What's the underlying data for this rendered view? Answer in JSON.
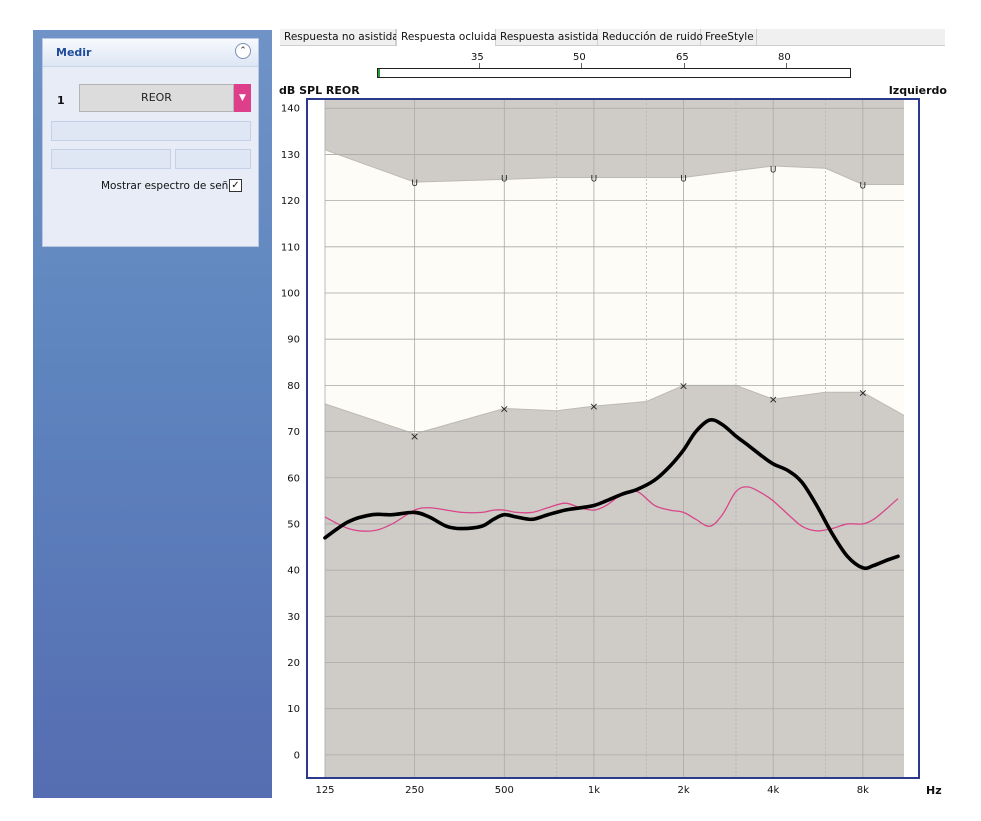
{
  "sidebar": {
    "panel_title": "Medir",
    "slot_number": "1",
    "measurement_button": "REOR",
    "show_spectrum_label": "Mostrar espectro de señal",
    "show_spectrum_checked": true
  },
  "tabs": [
    {
      "label": "Respuesta no asistida",
      "active": false
    },
    {
      "label": "Respuesta ocluida",
      "active": true
    },
    {
      "label": "Respuesta asistida",
      "active": false
    },
    {
      "label": "Reducción de ruido",
      "active": false
    },
    {
      "label": "FreeStyle",
      "active": false
    }
  ],
  "level_scale": {
    "labels": [
      "35",
      "50",
      "65",
      "80"
    ],
    "progress": 0.0
  },
  "chart": {
    "ylabel": "dB SPL REOR",
    "ear": "Izquierdo",
    "xunit": "Hz"
  },
  "chart_data": {
    "type": "line",
    "ylabel": "dB SPL REOR",
    "xunit": "Hz",
    "x_scale": "log",
    "xlim": [
      125,
      11000
    ],
    "ylim": [
      -5,
      142
    ],
    "x_ticks": [
      125,
      250,
      500,
      1000,
      2000,
      4000,
      8000
    ],
    "x_tick_labels": [
      "125",
      "250",
      "500",
      "1k",
      "2k",
      "4k",
      "8k"
    ],
    "y_ticks": [
      0,
      10,
      20,
      30,
      40,
      50,
      60,
      70,
      80,
      90,
      100,
      110,
      120,
      130,
      140
    ],
    "grid": true,
    "colors": {
      "shade": "#cfccc7",
      "dynamic_range": "#fdfcf6",
      "measured": "#000000",
      "target": "#d8468a",
      "frame": "#2b3a8f"
    },
    "upper_limit": {
      "x": [
        125,
        250,
        500,
        750,
        1000,
        1500,
        2000,
        3000,
        4000,
        6000,
        8000,
        11000
      ],
      "y": [
        131,
        124,
        124.6,
        125,
        125,
        125,
        125,
        126.5,
        127.5,
        127,
        123.5,
        123.5
      ]
    },
    "lower_limit": {
      "x": [
        125,
        250,
        500,
        750,
        1000,
        1500,
        2000,
        3000,
        4000,
        6000,
        8000,
        11000
      ],
      "y": [
        76,
        69.5,
        75,
        74.5,
        75.5,
        76.5,
        80,
        80,
        77,
        78.5,
        78.5,
        73.5
      ]
    },
    "ucl_markers": {
      "label": "U",
      "x": [
        250,
        500,
        1000,
        2000,
        4000,
        8000
      ],
      "y": [
        124,
        125,
        125,
        125,
        127,
        123.5
      ]
    },
    "threshold_markers": {
      "label": "×",
      "x": [
        250,
        500,
        1000,
        2000,
        4000,
        8000
      ],
      "y": [
        69,
        75,
        75.5,
        80,
        77,
        78.5
      ]
    },
    "series": [
      {
        "role": "measured",
        "x": [
          125,
          150,
          180,
          210,
          250,
          280,
          320,
          360,
          420,
          460,
          500,
          550,
          620,
          700,
          800,
          900,
          1000,
          1100,
          1250,
          1400,
          1600,
          1800,
          2000,
          2200,
          2450,
          2700,
          3000,
          3300,
          3700,
          4000,
          4500,
          5000,
          5600,
          6300,
          7100,
          8000,
          8700,
          9500,
          10500
        ],
        "y": [
          47,
          50.5,
          52,
          52,
          52.5,
          51.5,
          49.5,
          49,
          49.5,
          51,
          52,
          51.5,
          51,
          52,
          53,
          53.5,
          54,
          55,
          56.5,
          57.5,
          59.5,
          62.5,
          66,
          70,
          72.5,
          71.5,
          69,
          67,
          64.5,
          63,
          61.5,
          59,
          54,
          48,
          43,
          40.5,
          41,
          42,
          43
        ]
      },
      {
        "role": "target",
        "x": [
          125,
          150,
          180,
          210,
          250,
          280,
          320,
          360,
          420,
          460,
          500,
          550,
          620,
          700,
          800,
          900,
          1000,
          1100,
          1250,
          1400,
          1600,
          1800,
          2000,
          2200,
          2450,
          2700,
          3000,
          3300,
          3700,
          4000,
          4500,
          5000,
          5600,
          6300,
          7100,
          8000,
          8700,
          9500,
          10500
        ],
        "y": [
          51.5,
          49,
          48.5,
          50,
          53,
          53.5,
          53,
          52.5,
          52.5,
          53,
          53,
          52.5,
          52.5,
          53.5,
          54.5,
          53.5,
          53,
          54,
          56.5,
          57,
          54,
          53,
          52.5,
          51,
          49.5,
          52,
          57,
          58,
          56.5,
          55,
          52,
          49.5,
          48.5,
          49,
          50,
          50,
          51,
          53,
          55.5
        ]
      }
    ]
  }
}
